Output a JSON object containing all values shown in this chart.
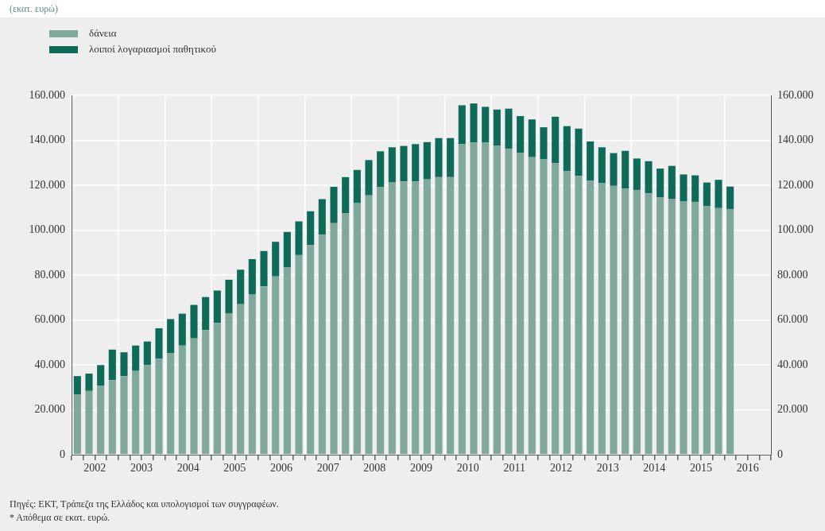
{
  "chart_data": {
    "type": "bar",
    "title": "(εκατ. ευρώ)",
    "categories": [
      null,
      "2002",
      null,
      null,
      null,
      "2003",
      null,
      null,
      null,
      "2004",
      null,
      null,
      null,
      "2005",
      null,
      null,
      null,
      "2006",
      null,
      null,
      null,
      "2007",
      null,
      null,
      null,
      "2008",
      null,
      null,
      null,
      "2009",
      null,
      null,
      null,
      "2010",
      null,
      null,
      null,
      "2011",
      null,
      null,
      null,
      "2012",
      null,
      null,
      null,
      "2013",
      null,
      null,
      null,
      "2014",
      null,
      null,
      null,
      "2015",
      null,
      null,
      null,
      "2016",
      null,
      null
    ],
    "stacked": true,
    "series": [
      {
        "name": "δάνεια",
        "color": "#7fa89c",
        "values": [
          26700,
          28400,
          30800,
          33200,
          35000,
          37300,
          39900,
          42700,
          45300,
          48600,
          51800,
          55500,
          58700,
          62800,
          67000,
          71300,
          75000,
          79400,
          83500,
          88900,
          93300,
          98000,
          103100,
          107500,
          112000,
          115500,
          119100,
          121200,
          121700,
          121700,
          122600,
          123600,
          123600,
          138300,
          139000,
          139000,
          137500,
          136300,
          134500,
          132500,
          131500,
          129800,
          126200,
          124100,
          122100,
          120900,
          119700,
          118500,
          117900,
          116400,
          114600,
          113800,
          112900,
          112600,
          110800,
          109800,
          109400,
          null,
          null,
          null
        ]
      },
      {
        "name": "λοιποί λογαριασμοί παθητικού",
        "color": "#0e6b5a",
        "values": [
          8300,
          7700,
          9100,
          13600,
          10600,
          11300,
          10500,
          13600,
          15100,
          14200,
          14900,
          14700,
          14400,
          15100,
          15400,
          15800,
          15700,
          15400,
          15700,
          15000,
          15100,
          15800,
          16200,
          16100,
          14800,
          15700,
          16000,
          15700,
          15800,
          16600,
          16600,
          17400,
          17400,
          17300,
          17400,
          15900,
          16200,
          17800,
          16300,
          16800,
          14300,
          20700,
          20100,
          21100,
          17400,
          16000,
          14600,
          16800,
          14000,
          14300,
          12800,
          14800,
          11900,
          11800,
          10400,
          12600,
          10000,
          null,
          null,
          null
        ]
      }
    ],
    "ylim": [
      0,
      160000
    ],
    "yticks": [
      {
        "value": 0,
        "label": "0"
      },
      {
        "value": 20000,
        "label": "20.000"
      },
      {
        "value": 40000,
        "label": "40.000"
      },
      {
        "value": 60000,
        "label": "60.000"
      },
      {
        "value": 80000,
        "label": "80.000"
      },
      {
        "value": 100000,
        "label": "100.000"
      },
      {
        "value": 120000,
        "label": "120.000"
      },
      {
        "value": 140000,
        "label": "140.000"
      },
      {
        "value": 160000,
        "label": "160.000"
      }
    ],
    "y2lim": [
      0,
      160000
    ],
    "y2ticks": [
      {
        "value": 0,
        "label": "0"
      },
      {
        "value": 20000,
        "label": "20.000"
      },
      {
        "value": 40000,
        "label": "40.000"
      },
      {
        "value": 60000,
        "label": "60.000"
      },
      {
        "value": 80000,
        "label": "80.000"
      },
      {
        "value": 100000,
        "label": "100.000"
      },
      {
        "value": 120000,
        "label": "120.000"
      },
      {
        "value": 140000,
        "label": "140.000"
      },
      {
        "value": 160000,
        "label": "160.000"
      }
    ],
    "grid": true,
    "legend": "top left",
    "annotations": [
      "Πηγές: ΕΚΤ, Τράπεζα της Ελλάδος και υπολογισμοί των συγγραφέων.",
      "* Απόθεμα σε εκατ. ευρώ."
    ]
  }
}
